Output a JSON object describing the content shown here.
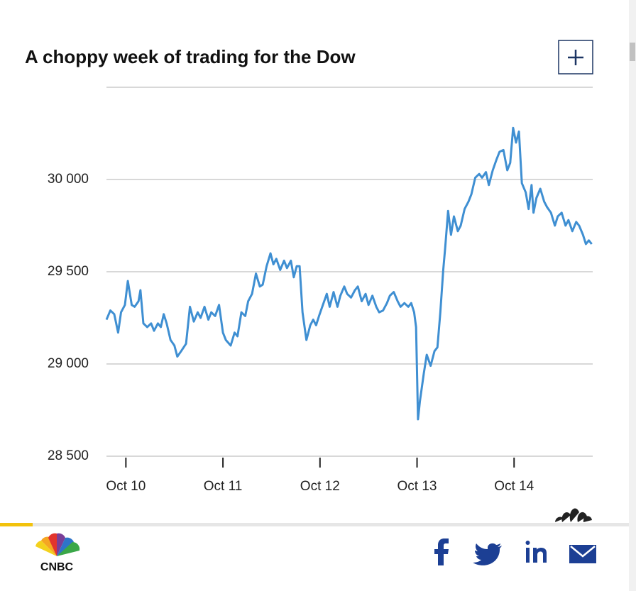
{
  "chart_data": {
    "type": "line",
    "title": "A choppy week of trading for the Dow",
    "xlim": [
      9.8,
      14.81
    ],
    "xticks": [
      {
        "value": 10,
        "label": "Oct 10"
      },
      {
        "value": 11,
        "label": "Oct 11"
      },
      {
        "value": 12,
        "label": "Oct 12"
      },
      {
        "value": 13,
        "label": "Oct 13"
      },
      {
        "value": 14,
        "label": "Oct 14"
      }
    ],
    "ylim": [
      28500,
      30500
    ],
    "yticks": [
      {
        "value": 28500,
        "label": "28 500"
      },
      {
        "value": 29000,
        "label": "29 000"
      },
      {
        "value": 29500,
        "label": "29 500"
      },
      {
        "value": 30000,
        "label": "30 000"
      }
    ],
    "grid": true,
    "color": "#3f8fd2",
    "x": [
      9.8,
      9.84,
      9.88,
      9.92,
      9.95,
      9.99,
      10.02,
      10.06,
      10.09,
      10.13,
      10.15,
      10.18,
      10.22,
      10.26,
      10.29,
      10.33,
      10.36,
      10.39,
      10.42,
      10.46,
      10.5,
      10.53,
      10.57,
      10.62,
      10.66,
      10.7,
      10.74,
      10.77,
      10.81,
      10.85,
      10.88,
      10.92,
      10.96,
      11.0,
      11.03,
      11.08,
      11.12,
      11.15,
      11.19,
      11.23,
      11.26,
      11.3,
      11.34,
      11.38,
      11.41,
      11.45,
      11.49,
      11.52,
      11.55,
      11.59,
      11.63,
      11.66,
      11.7,
      11.73,
      11.76,
      11.79,
      11.82,
      11.86,
      11.9,
      11.93,
      11.96,
      11.99,
      12.03,
      12.07,
      12.1,
      12.14,
      12.18,
      12.21,
      12.25,
      12.28,
      12.32,
      12.36,
      12.39,
      12.43,
      12.47,
      12.5,
      12.54,
      12.58,
      12.61,
      12.65,
      12.69,
      12.72,
      12.76,
      12.8,
      12.83,
      12.87,
      12.91,
      12.94,
      12.97,
      12.99,
      13.01,
      13.03,
      13.07,
      13.1,
      13.14,
      13.18,
      13.21,
      13.24,
      13.27,
      13.29,
      13.32,
      13.35,
      13.38,
      13.42,
      13.45,
      13.49,
      13.53,
      13.56,
      13.6,
      13.64,
      13.67,
      13.71,
      13.74,
      13.78,
      13.82,
      13.85,
      13.89,
      13.93,
      13.96,
      13.99,
      14.02,
      14.05,
      14.08,
      14.12,
      14.15,
      14.18,
      14.2,
      14.23,
      14.27,
      14.31,
      14.34,
      14.38,
      14.42,
      14.45,
      14.49,
      14.53,
      14.56,
      14.6,
      14.64,
      14.67,
      14.71,
      14.74,
      14.77,
      14.8
    ],
    "values": [
      29240,
      29290,
      29270,
      29170,
      29280,
      29320,
      29450,
      29320,
      29310,
      29340,
      29400,
      29220,
      29200,
      29220,
      29180,
      29220,
      29200,
      29270,
      29220,
      29130,
      29100,
      29040,
      29070,
      29110,
      29310,
      29230,
      29280,
      29250,
      29310,
      29240,
      29280,
      29260,
      29320,
      29170,
      29130,
      29100,
      29170,
      29150,
      29280,
      29260,
      29340,
      29380,
      29490,
      29420,
      29430,
      29530,
      29600,
      29540,
      29570,
      29510,
      29560,
      29520,
      29560,
      29470,
      29530,
      29530,
      29280,
      29130,
      29210,
      29240,
      29210,
      29260,
      29320,
      29380,
      29310,
      29390,
      29310,
      29370,
      29420,
      29380,
      29360,
      29400,
      29420,
      29340,
      29380,
      29320,
      29370,
      29310,
      29280,
      29290,
      29330,
      29370,
      29390,
      29340,
      29310,
      29330,
      29310,
      29330,
      29280,
      29200,
      28700,
      28800,
      28950,
      29050,
      28990,
      29070,
      29090,
      29280,
      29510,
      29630,
      29830,
      29700,
      29800,
      29720,
      29750,
      29840,
      29880,
      29920,
      30010,
      30030,
      30010,
      30040,
      29970,
      30050,
      30110,
      30150,
      30160,
      30050,
      30090,
      30280,
      30200,
      30260,
      29980,
      29930,
      29840,
      29970,
      29820,
      29900,
      29950,
      29880,
      29850,
      29820,
      29750,
      29800,
      29820,
      29750,
      29780,
      29720,
      29770,
      29750,
      29700,
      29650,
      29670,
      29650
    ]
  },
  "brand": {
    "logo": "CNBC"
  }
}
